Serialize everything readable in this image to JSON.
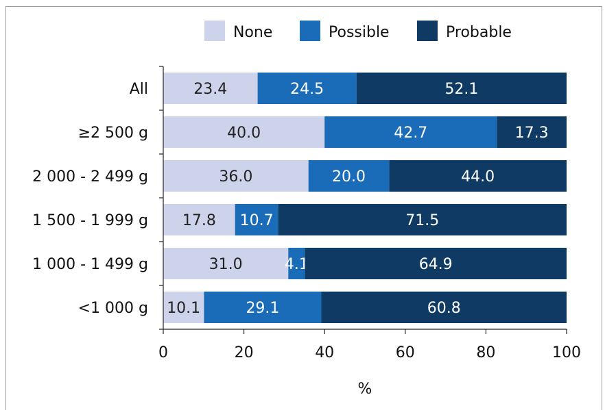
{
  "chart_data": {
    "type": "bar",
    "orientation": "horizontal",
    "stacked": true,
    "title": "",
    "xlabel": "%",
    "ylabel": "",
    "xlim": [
      0,
      100
    ],
    "xticks": [
      0,
      20,
      40,
      60,
      80,
      100
    ],
    "grid": false,
    "legend_position": "top",
    "categories": [
      "All",
      "≥2 500 g",
      "2 000 - 2 499 g",
      "1 500 - 1 999 g",
      "1 000 - 1 499 g",
      "<1 000 g"
    ],
    "series": [
      {
        "name": "None",
        "color": "#cdd3ea",
        "values": [
          23.4,
          40.0,
          36.0,
          17.8,
          31.0,
          10.1
        ]
      },
      {
        "name": "Possible",
        "color": "#1a6bb8",
        "values": [
          24.5,
          42.7,
          20.0,
          10.7,
          4.1,
          29.1
        ]
      },
      {
        "name": "Probable",
        "color": "#0e3a63",
        "values": [
          52.1,
          17.3,
          44.0,
          71.5,
          64.9,
          60.8
        ]
      }
    ],
    "data_labels": [
      [
        "23.4",
        "40.0",
        "36.0",
        "17.8",
        "31.0",
        "10.1"
      ],
      [
        "24.5",
        "42.7",
        "20.0",
        "10.7",
        "4.1",
        "29.1"
      ],
      [
        "52.1",
        "17.3",
        "44.0",
        "71.5",
        "64.9",
        "60.8"
      ]
    ],
    "label_colors": [
      "#222222",
      "#ffffff",
      "#ffffff"
    ]
  }
}
